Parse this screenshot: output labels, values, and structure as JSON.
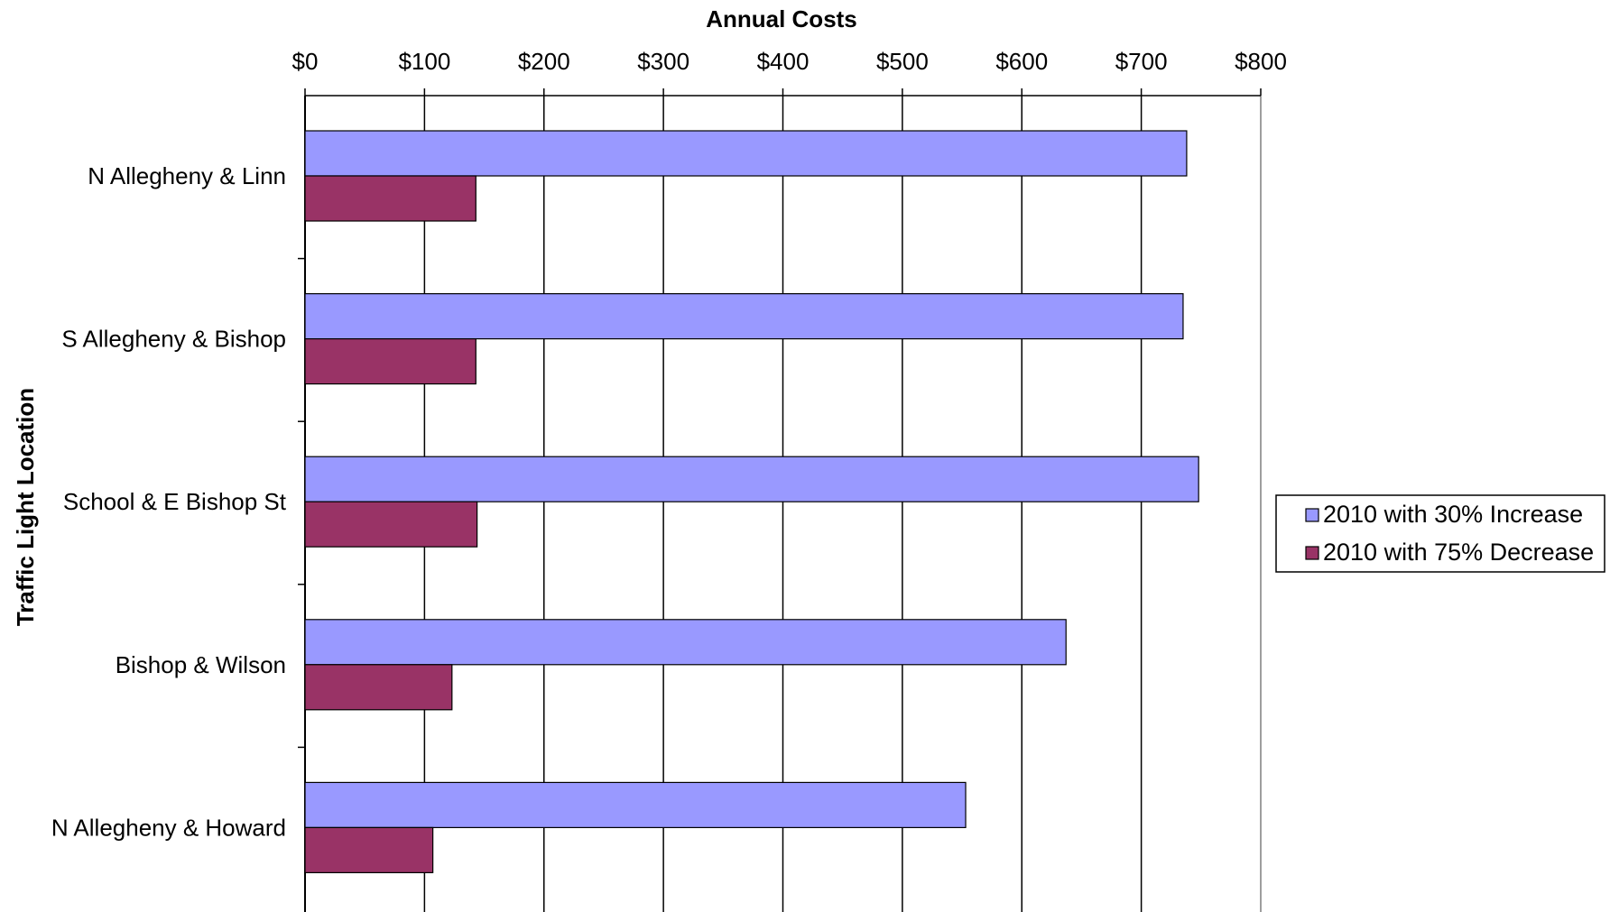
{
  "chart_data": {
    "type": "bar",
    "orientation": "horizontal",
    "title": "",
    "xlabel": "Annual Costs",
    "ylabel": "Traffic Light Location",
    "xlim": [
      0,
      800
    ],
    "x_ticks": [
      0,
      100,
      200,
      300,
      400,
      500,
      600,
      700,
      800
    ],
    "x_tick_labels": [
      "$0",
      "$100",
      "$200",
      "$300",
      "$400",
      "$500",
      "$600",
      "$700",
      "$800"
    ],
    "x_axis_position": "top",
    "grid": "vertical major gridlines",
    "legend_position": "right",
    "categories": [
      "N Allegheny & Linn",
      "S Allegheny & Bishop",
      "School & E Bishop St",
      "Bishop & Wilson",
      "N Allegheny & Howard"
    ],
    "series": [
      {
        "name": "2010 with 30% Increase",
        "color": "#9999ff",
        "values": [
          738,
          735,
          748,
          637,
          553
        ]
      },
      {
        "name": "2010 with 75% Decrease",
        "color": "#993366",
        "values": [
          143,
          143,
          144,
          123,
          107
        ]
      }
    ]
  }
}
